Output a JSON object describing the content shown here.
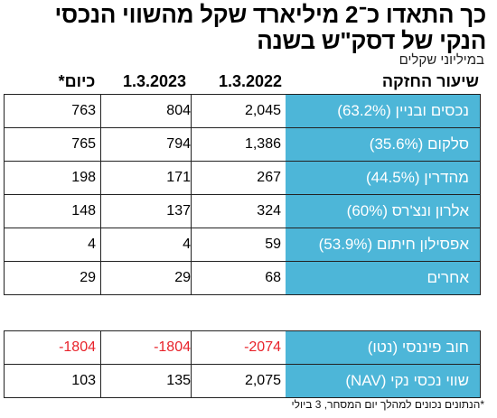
{
  "title": "כך התאדו כ־2 מיליארד שקל מהשווי הנכסי הנקי של דסק\"ש בשנה",
  "subtitle": "במיליוני שקלים",
  "headers": {
    "holding": "שיעור החזקה",
    "c2022": "1.3.2022",
    "c2023": "1.3.2023",
    "ctoday": "כיום*"
  },
  "footnote": "*הנתונים נכונים למהלך יום המסחר, 3 ביולי",
  "chart_data": {
    "type": "table",
    "columns": [
      "שיעור החזקה",
      "1.3.2022",
      "1.3.2023",
      "כיום*"
    ],
    "rows": [
      {
        "label": "נכסים ובניין (63.2%)",
        "v2022": "2,045",
        "v2023": "804",
        "vtoday": "763"
      },
      {
        "label": "סלקום (35.6%)",
        "v2022": "1,386",
        "v2023": "794",
        "vtoday": "765"
      },
      {
        "label": "מהדרין (44.5%)",
        "v2022": "267",
        "v2023": "171",
        "vtoday": "198"
      },
      {
        "label": "אלרון ונצ'רס (60%)",
        "v2022": "324",
        "v2023": "137",
        "vtoday": "148"
      },
      {
        "label": "אפסילון חיתום (53.9%)",
        "v2022": "59",
        "v2023": "4",
        "vtoday": "4"
      },
      {
        "label": "אחרים",
        "v2022": "68",
        "v2023": "29",
        "vtoday": "29"
      }
    ],
    "summary_rows": [
      {
        "label": "חוב פיננסי (נטו)",
        "v2022": "-2074",
        "v2023": "-1804",
        "vtoday": "-1804"
      },
      {
        "label": "שווי נכסי נקי (NAV)",
        "v2022": "2,075",
        "v2023": "135",
        "vtoday": "103"
      }
    ],
    "colors": {
      "label_bg": "#4db6d8",
      "negative": "#e8232b"
    }
  }
}
